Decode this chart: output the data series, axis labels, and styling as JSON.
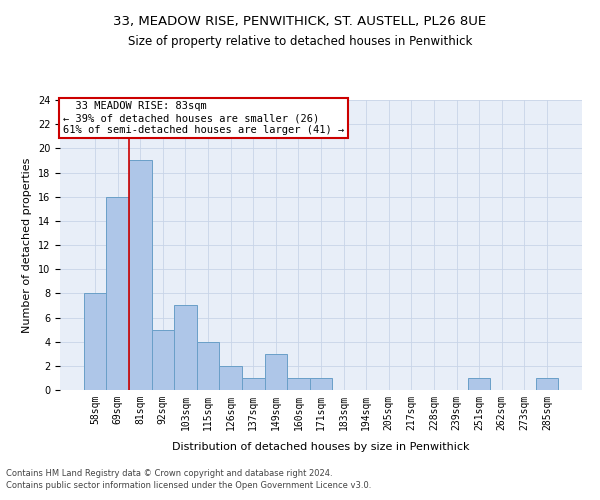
{
  "title1": "33, MEADOW RISE, PENWITHICK, ST. AUSTELL, PL26 8UE",
  "title2": "Size of property relative to detached houses in Penwithick",
  "xlabel": "Distribution of detached houses by size in Penwithick",
  "ylabel": "Number of detached properties",
  "footer1": "Contains HM Land Registry data © Crown copyright and database right 2024.",
  "footer2": "Contains public sector information licensed under the Open Government Licence v3.0.",
  "annotation_line1": "33 MEADOW RISE: 83sqm",
  "annotation_line2": "← 39% of detached houses are smaller (26)",
  "annotation_line3": "61% of semi-detached houses are larger (41) →",
  "bar_labels": [
    "58sqm",
    "69sqm",
    "81sqm",
    "92sqm",
    "103sqm",
    "115sqm",
    "126sqm",
    "137sqm",
    "149sqm",
    "160sqm",
    "171sqm",
    "183sqm",
    "194sqm",
    "205sqm",
    "217sqm",
    "228sqm",
    "239sqm",
    "251sqm",
    "262sqm",
    "273sqm",
    "285sqm"
  ],
  "bar_values": [
    8,
    16,
    19,
    5,
    7,
    4,
    2,
    1,
    3,
    1,
    1,
    0,
    0,
    0,
    0,
    0,
    0,
    1,
    0,
    0,
    1
  ],
  "bar_color": "#aec6e8",
  "bar_edgecolor": "#6a9fc8",
  "bar_linewidth": 0.7,
  "vline_index": 2,
  "vline_color": "#cc0000",
  "vline_linewidth": 1.2,
  "ylim": [
    0,
    24
  ],
  "yticks": [
    0,
    2,
    4,
    6,
    8,
    10,
    12,
    14,
    16,
    18,
    20,
    22,
    24
  ],
  "grid_color": "#c8d4e8",
  "bg_color": "#e8eef8",
  "annotation_box_color": "#cc0000",
  "title1_fontsize": 9.5,
  "title2_fontsize": 8.5,
  "xlabel_fontsize": 8,
  "ylabel_fontsize": 8,
  "annotation_fontsize": 7.5,
  "tick_fontsize": 7,
  "footer_fontsize": 6
}
